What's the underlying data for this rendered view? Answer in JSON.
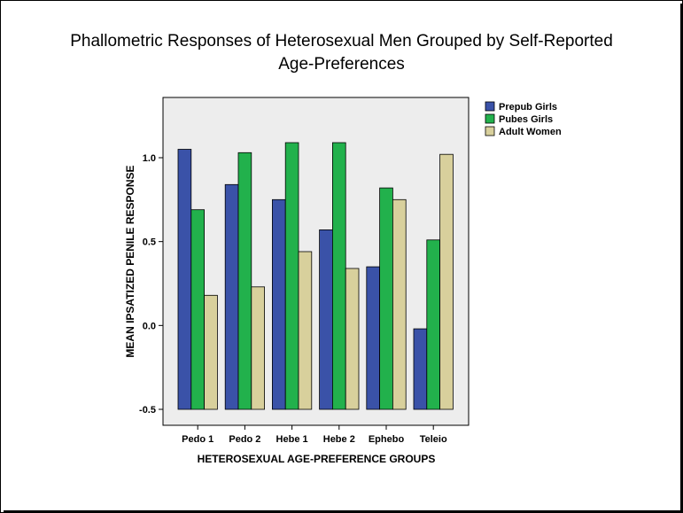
{
  "chart_data": {
    "type": "bar",
    "title": "Phallometric Responses of Heterosexual Men Grouped by Self-Reported Age-Preferences",
    "xlabel": "HETEROSEXUAL AGE-PREFERENCE GROUPS",
    "ylabel": "MEAN IPSATIZED PENILE RESPONSE",
    "categories": [
      "Pedo 1",
      "Pedo 2",
      "Hebe 1",
      "Hebe 2",
      "Ephebo",
      "Teleio"
    ],
    "ylim": [
      -0.5,
      1.0
    ],
    "yticks": [
      "-0.5",
      "0.0",
      "0.5",
      "1.0"
    ],
    "baseline": -0.5,
    "grid": false,
    "legend_position": "right",
    "series": [
      {
        "name": "Prepub Girls",
        "color": "#3a52a8",
        "values": [
          1.05,
          0.84,
          0.75,
          0.57,
          0.35,
          -0.02
        ]
      },
      {
        "name": "Pubes Girls",
        "color": "#22b14c",
        "values": [
          0.69,
          1.03,
          1.09,
          1.09,
          0.82,
          0.51
        ]
      },
      {
        "name": "Adult Women",
        "color": "#d8d09c",
        "values": [
          0.18,
          0.23,
          0.44,
          0.34,
          0.75,
          1.02
        ]
      }
    ],
    "plot_background": "#ededed"
  }
}
